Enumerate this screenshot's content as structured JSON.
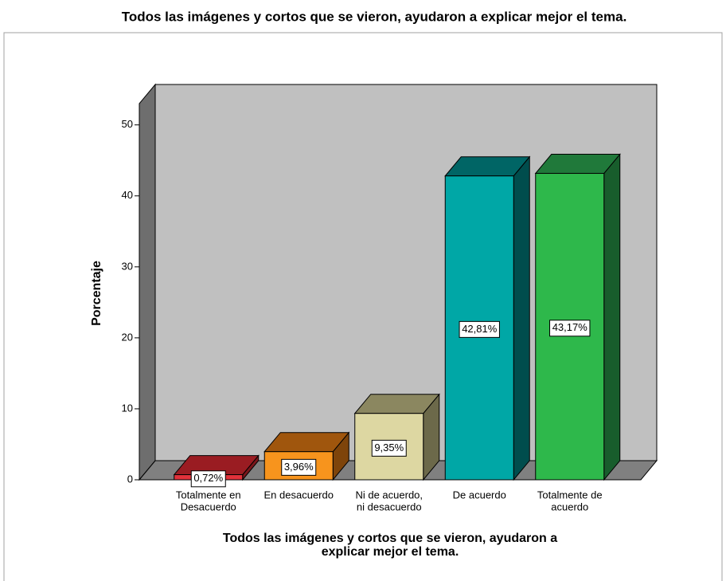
{
  "chart_data": {
    "type": "bar3d",
    "title": "Todos las imágenes y cortos que se vieron, ayudaron a explicar mejor el tema.",
    "ylabel": "Porcentaje",
    "xlabel": [
      "Todos las imágenes y cortos que se vieron, ayudaron a",
      "explicar mejor el tema."
    ],
    "categories": [
      [
        "Totalmente en",
        "Desacuerdo"
      ],
      [
        "En desacuerdo"
      ],
      [
        "Ni de acuerdo,",
        "ni desacuerdo"
      ],
      [
        "De acuerdo"
      ],
      [
        "Totalmente de",
        "acuerdo"
      ]
    ],
    "values": [
      0.72,
      3.96,
      9.35,
      42.81,
      43.17
    ],
    "value_labels": [
      "0,72%",
      "3,96%",
      "9,35%",
      "42,81%",
      "43,17%"
    ],
    "colors": [
      "#e2323b",
      "#f7941d",
      "#ddd7a2",
      "#00a7a6",
      "#2eb84b"
    ],
    "top_colors": [
      "#9a1c22",
      "#a0560d",
      "#8b8760",
      "#006565",
      "#20793a"
    ],
    "side_colors": [
      "#7a161b",
      "#7e440a",
      "#6c694a",
      "#004d4d",
      "#185d2c"
    ],
    "ylim": [
      0,
      53
    ],
    "yticks": [
      0,
      10,
      20,
      30,
      40,
      50
    ],
    "grid": false
  }
}
